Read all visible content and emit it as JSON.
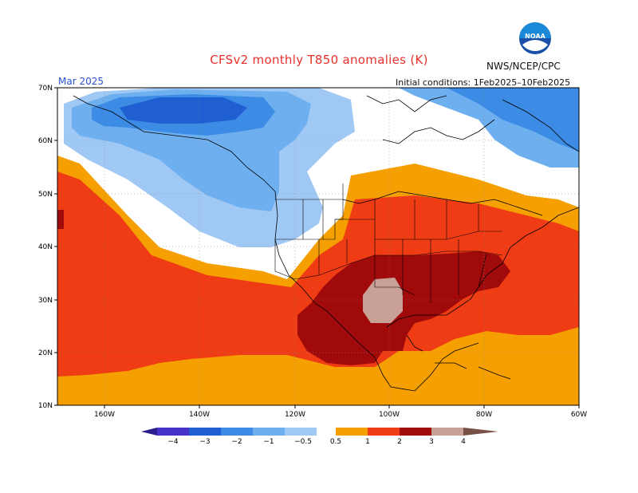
{
  "header": {
    "title": "CFSv2 monthly T850 anomalies (K)",
    "period": "Mar 2025",
    "agency": "NWS/NCEP/CPC",
    "initial_conditions": "Initial conditions: 1Feb2025–10Feb2025",
    "logo_text": "NOAA"
  },
  "map": {
    "lat_labels": [
      "70N",
      "60N",
      "50N",
      "40N",
      "30N",
      "20N",
      "10N"
    ],
    "lon_labels": [
      "160W",
      "140W",
      "120W",
      "100W",
      "80W",
      "60W"
    ]
  },
  "colorbar": {
    "labels": [
      "−4",
      "−3",
      "−2",
      "−1",
      "−0.5",
      "0.5",
      "1",
      "2",
      "3",
      "4"
    ],
    "colors": [
      "#4632c8",
      "#1f5fd2",
      "#3c8ce6",
      "#6eaff0",
      "#a0c8f4",
      "#ffffff",
      "#f5a000",
      "#f03c14",
      "#a00a0a",
      "#c8a096",
      "#785046"
    ]
  }
}
